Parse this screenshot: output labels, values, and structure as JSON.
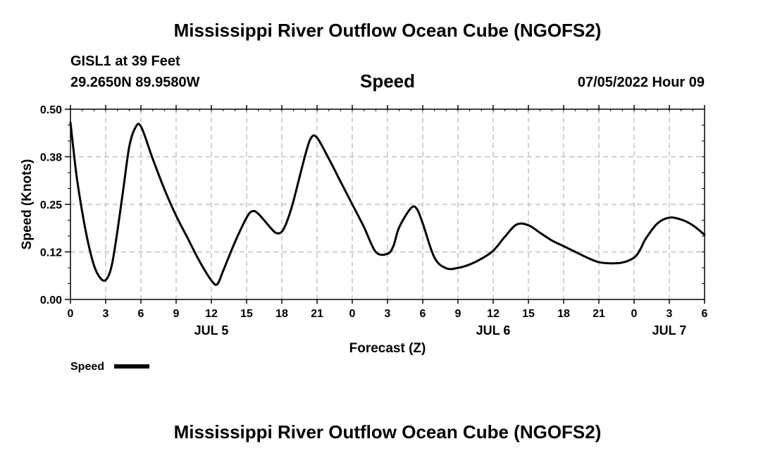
{
  "header": {
    "title": "Mississippi River Outflow Ocean Cube (NGOFS2)",
    "station": "GISL1 at 39 Feet",
    "coords": "29.2650N  89.9580W",
    "datetime": "07/05/2022 Hour 09"
  },
  "footer": {
    "title": "Mississippi River Outflow Ocean Cube (NGOFS2)"
  },
  "chart_data": {
    "type": "line",
    "title": "Speed",
    "xlabel": "Forecast (Z)",
    "ylabel": "Speed (Knots)",
    "ylim": [
      0,
      0.5
    ],
    "yticks": [
      "0.00",
      "0.12",
      "0.25",
      "0.38",
      "0.50"
    ],
    "xlim": [
      0,
      54
    ],
    "xticks": [
      "0",
      "3",
      "6",
      "9",
      "12",
      "15",
      "18",
      "21",
      "0",
      "3",
      "6",
      "9",
      "12",
      "15",
      "18",
      "21",
      "0",
      "3",
      "6"
    ],
    "date_labels": [
      {
        "label": "JUL 5",
        "x": 12
      },
      {
        "label": "JUL 6",
        "x": 36
      },
      {
        "label": "JUL 7",
        "x": 51
      }
    ],
    "grid": true,
    "legend": {
      "label": "Speed",
      "placement": "bottom-left"
    },
    "series": [
      {
        "name": "Speed",
        "color": "#000000",
        "x": [
          0,
          0.5,
          1,
          1.5,
          2,
          2.5,
          3,
          3.5,
          4,
          4.5,
          5,
          5.5,
          6,
          7,
          8,
          9,
          10,
          11,
          12,
          12.5,
          13,
          14,
          15,
          15.5,
          16,
          17,
          17.5,
          18,
          18.5,
          19,
          20,
          20.5,
          21,
          22,
          23,
          24,
          25,
          26,
          27,
          27.5,
          28,
          29,
          29.5,
          30,
          31,
          32,
          33,
          34,
          35,
          36,
          37,
          38,
          39,
          40,
          41,
          42,
          43,
          44,
          45,
          46,
          47,
          48,
          48.5,
          49,
          50,
          51,
          52,
          53,
          54
        ],
        "y": [
          0.465,
          0.33,
          0.23,
          0.15,
          0.09,
          0.058,
          0.051,
          0.087,
          0.18,
          0.29,
          0.4,
          0.45,
          0.455,
          0.37,
          0.29,
          0.22,
          0.16,
          0.1,
          0.05,
          0.04,
          0.075,
          0.15,
          0.215,
          0.232,
          0.225,
          0.19,
          0.175,
          0.178,
          0.21,
          0.26,
          0.38,
          0.425,
          0.425,
          0.37,
          0.31,
          0.25,
          0.19,
          0.125,
          0.12,
          0.14,
          0.19,
          0.24,
          0.238,
          0.2,
          0.11,
          0.082,
          0.083,
          0.092,
          0.107,
          0.128,
          0.165,
          0.197,
          0.195,
          0.175,
          0.155,
          0.14,
          0.125,
          0.11,
          0.098,
          0.095,
          0.097,
          0.11,
          0.13,
          0.16,
          0.2,
          0.215,
          0.21,
          0.195,
          0.17
        ]
      }
    ]
  }
}
